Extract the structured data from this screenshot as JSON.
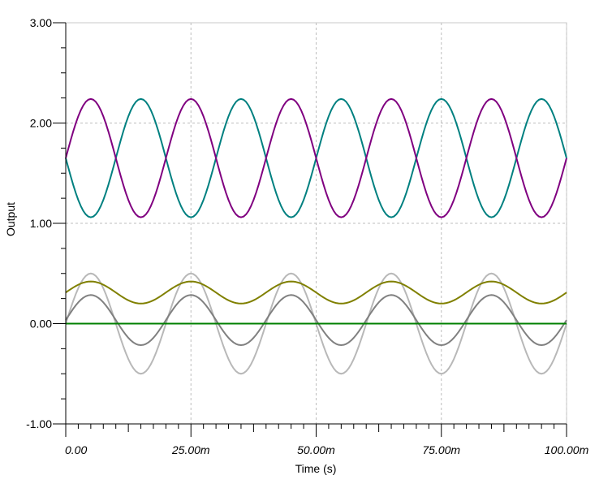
{
  "chart_data": {
    "type": "line",
    "xlabel": "Time (s)",
    "ylabel": "Output",
    "xlim": [
      0,
      0.1
    ],
    "ylim": [
      -1,
      3
    ],
    "x_ticks": [
      {
        "value": 0,
        "label": "0.00"
      },
      {
        "value": 0.025,
        "label": "25.00m"
      },
      {
        "value": 0.05,
        "label": "50.00m"
      },
      {
        "value": 0.075,
        "label": "75.00m"
      },
      {
        "value": 0.1,
        "label": "100.00m"
      }
    ],
    "y_ticks": [
      {
        "value": -1,
        "label": "-1.00"
      },
      {
        "value": 0,
        "label": "0.00"
      },
      {
        "value": 1,
        "label": "1.00"
      },
      {
        "value": 2,
        "label": "2.00"
      },
      {
        "value": 3,
        "label": "3.00"
      }
    ],
    "grid": true,
    "x_sample_step": 0.0005,
    "series": [
      {
        "color": "#b8b8b8",
        "form": "sine",
        "offset": 0.0,
        "amplitude": 0.5,
        "frequency_hz": 50,
        "phase_deg": 0
      },
      {
        "color": "#808080",
        "form": "sine",
        "offset": 0.035,
        "amplitude": 0.25,
        "frequency_hz": 50,
        "phase_deg": 0
      },
      {
        "color": "#808000",
        "form": "sine",
        "offset": 0.31,
        "amplitude": 0.11,
        "frequency_hz": 50,
        "phase_deg": 0
      },
      {
        "color": "#008000",
        "form": "constant",
        "offset": 0.0,
        "amplitude": 0,
        "frequency_hz": 0,
        "phase_deg": 0
      },
      {
        "color": "#008080",
        "form": "sine",
        "offset": 1.65,
        "amplitude": -0.59,
        "frequency_hz": 50,
        "phase_deg": 0
      },
      {
        "color": "#800080",
        "form": "sine",
        "offset": 1.65,
        "amplitude": 0.59,
        "frequency_hz": 50,
        "phase_deg": 0
      }
    ]
  }
}
